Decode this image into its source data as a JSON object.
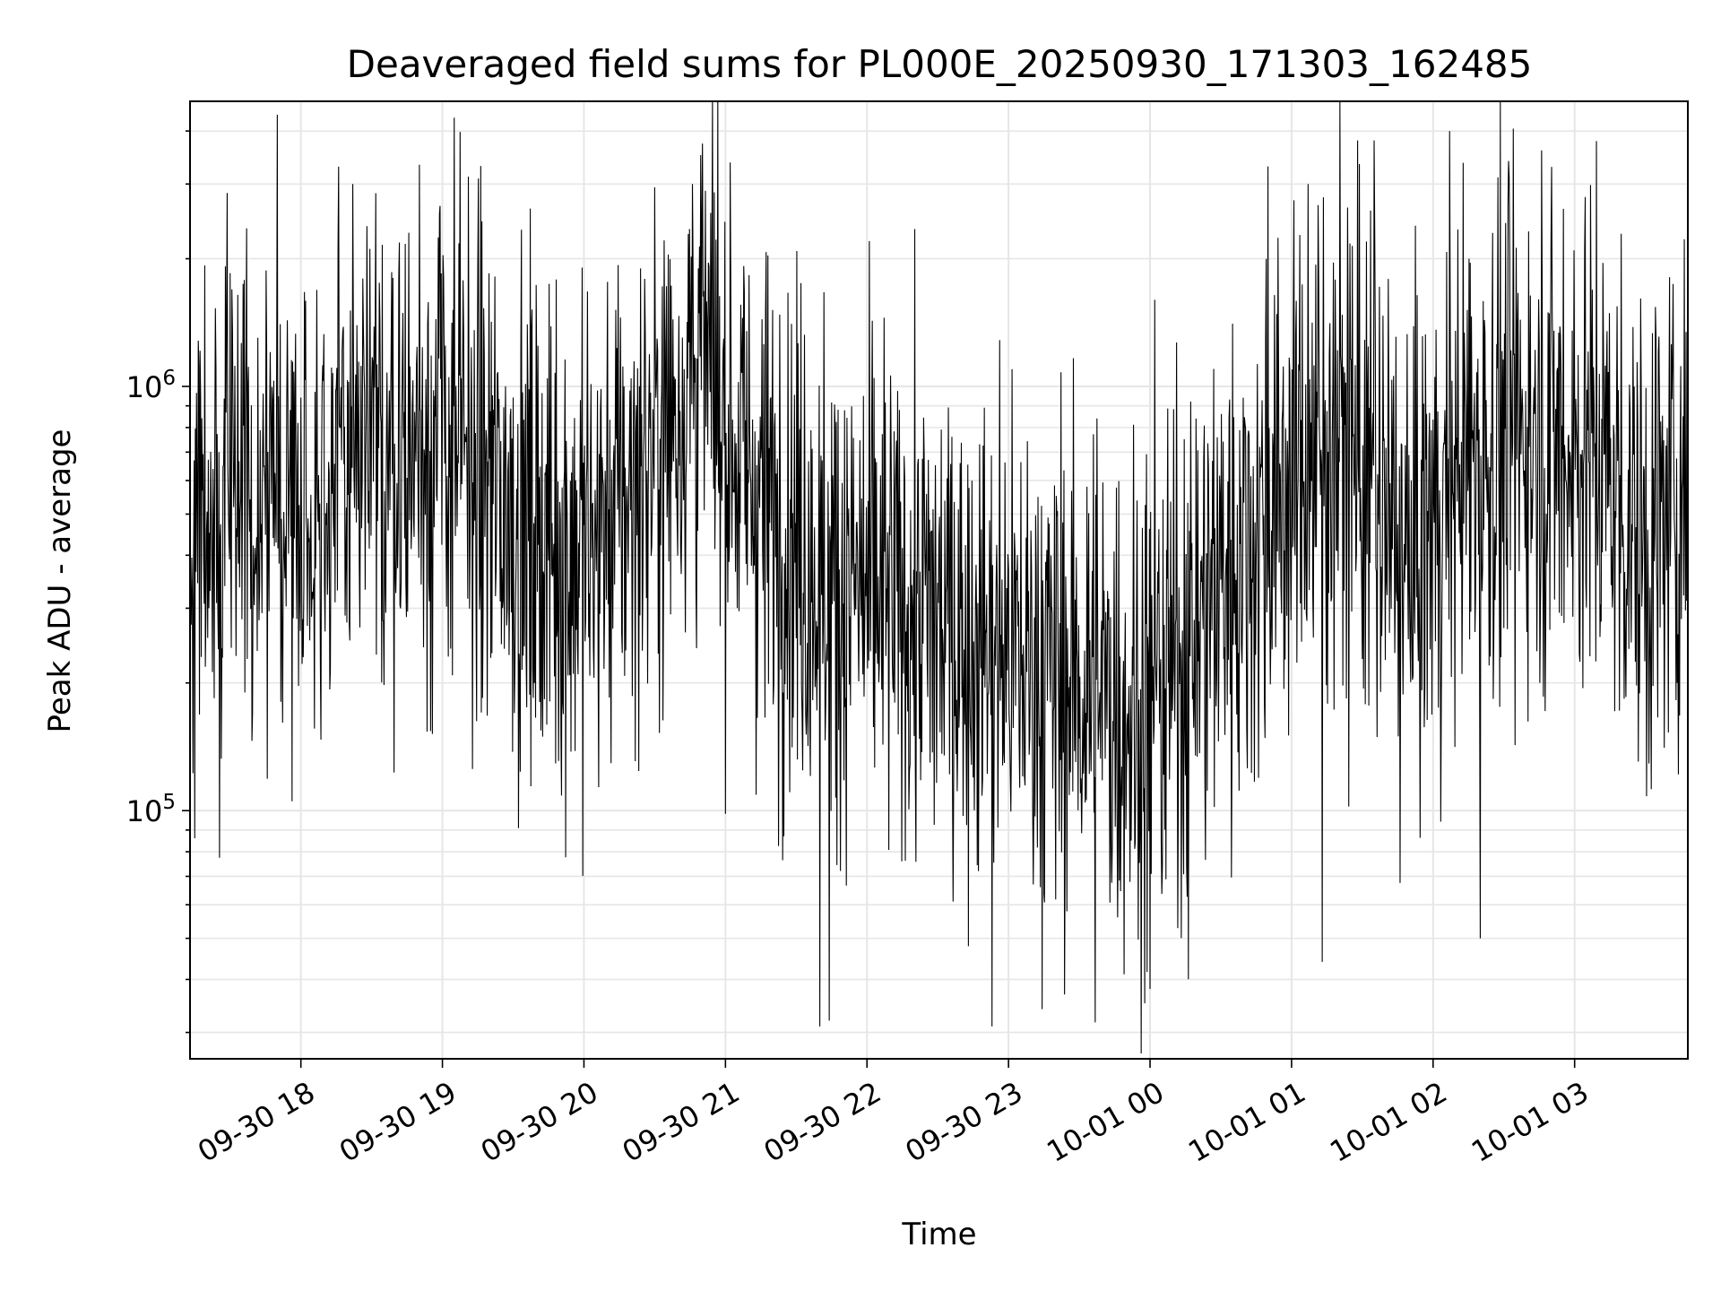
{
  "chart_data": {
    "type": "line",
    "title": "Deaveraged field sums for PL000E_20250930_171303_162485",
    "xlabel": "Time",
    "ylabel": "Peak ADU - average",
    "yscale": "log",
    "ylim": [
      26000,
      4700000
    ],
    "xlim": [
      "2025-09-30 17:13",
      "2025-10-01 03:48"
    ],
    "grid": true,
    "x_ticks": [
      "09-30 18",
      "09-30 19",
      "09-30 20",
      "09-30 21",
      "09-30 22",
      "09-30 23",
      "10-01 00",
      "10-01 01",
      "10-01 02",
      "10-01 03"
    ],
    "y_ticks": [
      {
        "base": "10",
        "exp": "5",
        "value": 100000
      },
      {
        "base": "10",
        "exp": "6",
        "value": 1000000
      }
    ],
    "series": [
      {
        "color": "#000000",
        "sample_interval_min": 1,
        "trend": [
          {
            "x": "2025-09-30 17:13",
            "y": 500000
          },
          {
            "x": "2025-09-30 17:30",
            "y": 600000
          },
          {
            "x": "2025-09-30 18:00",
            "y": 550000
          },
          {
            "x": "2025-09-30 18:30",
            "y": 650000
          },
          {
            "x": "2025-09-30 19:00",
            "y": 800000
          },
          {
            "x": "2025-09-30 19:30",
            "y": 500000
          },
          {
            "x": "2025-09-30 20:00",
            "y": 400000
          },
          {
            "x": "2025-09-30 20:30",
            "y": 700000
          },
          {
            "x": "2025-09-30 20:50",
            "y": 1200000
          },
          {
            "x": "2025-09-30 21:10",
            "y": 600000
          },
          {
            "x": "2025-09-30 21:45",
            "y": 350000
          },
          {
            "x": "2025-09-30 22:30",
            "y": 280000
          },
          {
            "x": "2025-09-30 23:10",
            "y": 220000
          },
          {
            "x": "2025-10-01 00:00",
            "y": 170000
          },
          {
            "x": "2025-10-01 00:30",
            "y": 350000
          },
          {
            "x": "2025-10-01 01:00",
            "y": 600000
          },
          {
            "x": "2025-10-01 01:20",
            "y": 800000
          },
          {
            "x": "2025-10-01 01:50",
            "y": 350000
          },
          {
            "x": "2025-10-01 02:10",
            "y": 650000
          },
          {
            "x": "2025-10-01 02:40",
            "y": 800000
          },
          {
            "x": "2025-10-01 03:10",
            "y": 700000
          },
          {
            "x": "2025-10-01 03:30",
            "y": 400000
          },
          {
            "x": "2025-10-01 03:48",
            "y": 600000
          }
        ],
        "spikes": [
          {
            "x": "2025-09-30 18:22",
            "y": 3000000
          },
          {
            "x": "2025-09-30 20:46",
            "y": 3000000
          },
          {
            "x": "2025-09-30 21:40",
            "y": 31000
          },
          {
            "x": "2025-09-30 21:44",
            "y": 32000
          },
          {
            "x": "2025-09-30 22:53",
            "y": 31000
          },
          {
            "x": "2025-10-01 00:00",
            "y": 38000
          },
          {
            "x": "2025-10-01 00:02",
            "y": 1600000
          },
          {
            "x": "2025-10-01 00:50",
            "y": 3300000
          },
          {
            "x": "2025-10-01 01:07",
            "y": 3000000
          },
          {
            "x": "2025-10-01 01:13",
            "y": 44000
          },
          {
            "x": "2025-10-01 01:28",
            "y": 3800000
          },
          {
            "x": "2025-10-01 01:35",
            "y": 3800000
          },
          {
            "x": "2025-10-01 02:07",
            "y": 4000000
          },
          {
            "x": "2025-10-01 02:32",
            "y": 3400000
          },
          {
            "x": "2025-10-01 02:46",
            "y": 3600000
          },
          {
            "x": "2025-10-01 02:20",
            "y": 50000
          }
        ]
      }
    ]
  }
}
